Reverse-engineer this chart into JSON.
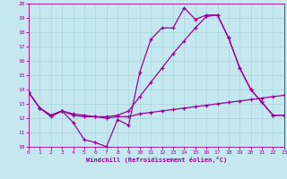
{
  "xlabel": "Windchill (Refroidissement éolien,°C)",
  "xlim": [
    0,
    23
  ],
  "ylim": [
    10,
    20
  ],
  "xticks": [
    0,
    1,
    2,
    3,
    4,
    5,
    6,
    7,
    8,
    9,
    10,
    11,
    12,
    13,
    14,
    15,
    16,
    17,
    18,
    19,
    20,
    21,
    22,
    23
  ],
  "yticks": [
    10,
    11,
    12,
    13,
    14,
    15,
    16,
    17,
    18,
    19,
    20
  ],
  "bg_color": "#c5e8f0",
  "grid_color": "#aad4de",
  "line_color": "#990099",
  "line1_x": [
    0,
    1,
    2,
    3,
    4,
    5,
    6,
    7,
    8,
    9,
    10,
    11,
    12,
    13,
    14,
    15,
    16,
    17,
    18,
    19,
    20,
    21,
    22,
    23
  ],
  "line1_y": [
    13.8,
    12.7,
    12.1,
    12.5,
    11.7,
    10.5,
    10.3,
    10.0,
    11.9,
    11.5,
    15.2,
    17.5,
    18.3,
    18.3,
    19.7,
    18.9,
    19.2,
    19.2,
    17.6,
    15.5,
    14.0,
    13.1,
    12.2,
    12.2
  ],
  "line2_x": [
    0,
    1,
    2,
    3,
    4,
    5,
    6,
    7,
    8,
    9,
    10,
    11,
    12,
    13,
    14,
    15,
    16,
    17,
    18,
    19,
    20,
    21,
    22,
    23
  ],
  "line2_y": [
    13.8,
    12.7,
    12.2,
    12.5,
    12.2,
    12.1,
    12.1,
    12.0,
    12.1,
    12.1,
    12.3,
    12.4,
    12.5,
    12.6,
    12.7,
    12.8,
    12.9,
    13.0,
    13.1,
    13.2,
    13.3,
    13.4,
    13.5,
    13.6
  ],
  "line3_x": [
    0,
    1,
    2,
    3,
    4,
    5,
    6,
    7,
    8,
    9,
    10,
    11,
    12,
    13,
    14,
    15,
    16,
    17,
    18,
    19,
    20,
    21,
    22,
    23
  ],
  "line3_y": [
    13.8,
    12.7,
    12.2,
    12.5,
    12.3,
    12.2,
    12.1,
    12.1,
    12.2,
    12.5,
    13.5,
    14.5,
    15.5,
    16.5,
    17.4,
    18.3,
    19.1,
    19.2,
    17.6,
    15.5,
    14.0,
    13.1,
    12.2,
    12.2
  ]
}
